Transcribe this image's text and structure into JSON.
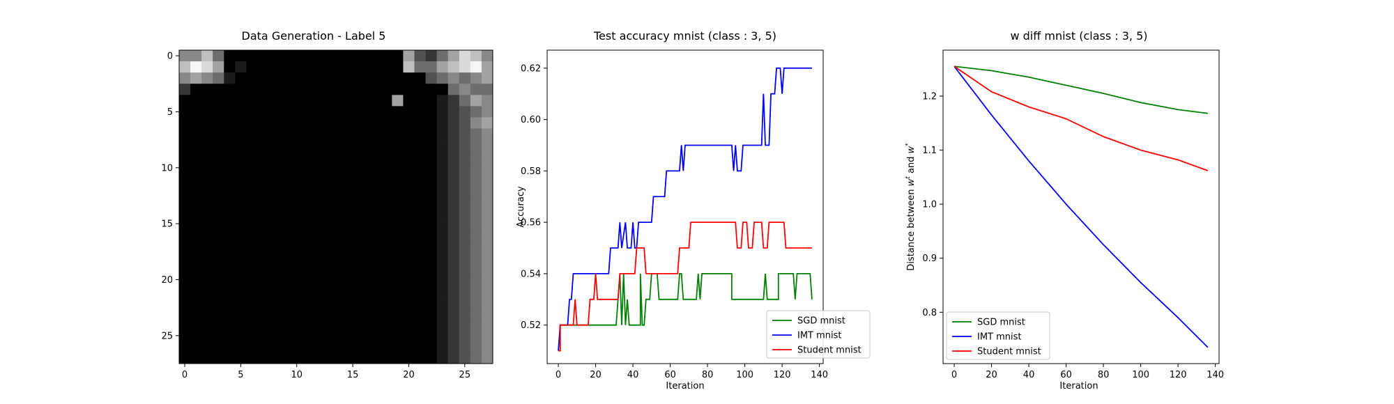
{
  "colors": {
    "sgd": "#008000",
    "imt": "#0000ff",
    "student": "#ff0000"
  },
  "chart_data": [
    {
      "type": "heatmap",
      "title": "Data Generation - Label 5",
      "xlabel": "",
      "ylabel": "",
      "colormap": "gray",
      "xlim": [
        -0.5,
        27.5
      ],
      "ylim": [
        27.5,
        -0.5
      ],
      "xticks": [
        0,
        5,
        10,
        15,
        20,
        25
      ],
      "yticks": [
        0,
        5,
        10,
        15,
        20,
        25
      ],
      "rows": [
        "5574000000000000000063246875",
        "7986010000000000000074467896",
        "5654100000000000000000345456",
        "2000000000000000000000004544",
        "0000000000000000000600012465",
        "0000000000000000000000012345",
        "0000000000000000000000012356",
        "0000000000000000000000012345",
        "0000000000000000000000012345",
        "0000000000000000000000012345",
        "0000000000000000000000012345",
        "0000000000000000000000012345",
        "0000000000000000000000012345",
        "0000000000000000000000012345",
        "0000000000000000000000012345",
        "0000000000000000000000012345",
        "0000000000000000000000012345",
        "0000000000000000000000012345",
        "0000000000000000000000012345",
        "0000000000000000000000012345",
        "0000000000000000000000012345",
        "0000000000000000000000012345",
        "0000000000000000000000012345",
        "0000000000000000000000012345",
        "0000000000000000000000012345",
        "0000000000000000000000012345",
        "0000000000000000000000012345",
        "0000000000000000000000012345"
      ]
    },
    {
      "type": "line",
      "title": "Test accuracy mnist (class : 3, 5)",
      "xlabel": "Iteration",
      "ylabel": "Accuracy",
      "xlim": [
        -6,
        142
      ],
      "ylim": [
        0.505,
        0.627
      ],
      "xticks": [
        0,
        20,
        40,
        60,
        80,
        100,
        120,
        140
      ],
      "yticks": [
        0.52,
        0.54,
        0.56,
        0.58,
        0.6,
        0.62
      ],
      "ytick_labels": [
        "0.52",
        "0.54",
        "0.56",
        "0.58",
        "0.60",
        "0.62"
      ],
      "legend_position": "lower-right",
      "series": [
        {
          "name": "SGD mnist",
          "color_key": "sgd",
          "points": [
            [
              0,
              0.51
            ],
            [
              1,
              0.51
            ],
            [
              1,
              0.52
            ],
            [
              2,
              0.52
            ],
            [
              30,
              0.52
            ],
            [
              31,
              0.52
            ],
            [
              32,
              0.53
            ],
            [
              33,
              0.54
            ],
            [
              34,
              0.52
            ],
            [
              35,
              0.54
            ],
            [
              36,
              0.52
            ],
            [
              37,
              0.53
            ],
            [
              38,
              0.52
            ],
            [
              44,
              0.52
            ],
            [
              44,
              0.54
            ],
            [
              45,
              0.52
            ],
            [
              46,
              0.52
            ],
            [
              47,
              0.53
            ],
            [
              49,
              0.53
            ],
            [
              50,
              0.54
            ],
            [
              53,
              0.54
            ],
            [
              54,
              0.53
            ],
            [
              64,
              0.53
            ],
            [
              65,
              0.54
            ],
            [
              66,
              0.54
            ],
            [
              67,
              0.53
            ],
            [
              74,
              0.53
            ],
            [
              75,
              0.54
            ],
            [
              76,
              0.53
            ],
            [
              77,
              0.54
            ],
            [
              93,
              0.54
            ],
            [
              93,
              0.53
            ],
            [
              110,
              0.53
            ],
            [
              111,
              0.54
            ],
            [
              112,
              0.53
            ],
            [
              118,
              0.53
            ],
            [
              118,
              0.54
            ],
            [
              126,
              0.54
            ],
            [
              127,
              0.53
            ],
            [
              128,
              0.54
            ],
            [
              135,
              0.54
            ],
            [
              136,
              0.53
            ]
          ]
        },
        {
          "name": "IMT mnist",
          "color_key": "imt",
          "points": [
            [
              0,
              0.51
            ],
            [
              1,
              0.52
            ],
            [
              5,
              0.52
            ],
            [
              6,
              0.53
            ],
            [
              7,
              0.53
            ],
            [
              8,
              0.54
            ],
            [
              27,
              0.54
            ],
            [
              28,
              0.55
            ],
            [
              32,
              0.55
            ],
            [
              33,
              0.56
            ],
            [
              34,
              0.55
            ],
            [
              36,
              0.56
            ],
            [
              37,
              0.55
            ],
            [
              39,
              0.55
            ],
            [
              40,
              0.56
            ],
            [
              41,
              0.55
            ],
            [
              42,
              0.55
            ],
            [
              43,
              0.56
            ],
            [
              50,
              0.56
            ],
            [
              51,
              0.57
            ],
            [
              57,
              0.57
            ],
            [
              58,
              0.58
            ],
            [
              65,
              0.58
            ],
            [
              66,
              0.59
            ],
            [
              67,
              0.58
            ],
            [
              68,
              0.59
            ],
            [
              93,
              0.59
            ],
            [
              94,
              0.58
            ],
            [
              95,
              0.59
            ],
            [
              96,
              0.58
            ],
            [
              98,
              0.58
            ],
            [
              99,
              0.59
            ],
            [
              109,
              0.59
            ],
            [
              110,
              0.61
            ],
            [
              111,
              0.59
            ],
            [
              113,
              0.59
            ],
            [
              114,
              0.61
            ],
            [
              116,
              0.61
            ],
            [
              117,
              0.62
            ],
            [
              119,
              0.62
            ],
            [
              120,
              0.61
            ],
            [
              121,
              0.62
            ],
            [
              136,
              0.62
            ]
          ]
        },
        {
          "name": "Student mnist",
          "color_key": "student",
          "points": [
            [
              0,
              0.51
            ],
            [
              1,
              0.51
            ],
            [
              1,
              0.52
            ],
            [
              8,
              0.52
            ],
            [
              9,
              0.53
            ],
            [
              10,
              0.52
            ],
            [
              16,
              0.52
            ],
            [
              17,
              0.53
            ],
            [
              19,
              0.53
            ],
            [
              20,
              0.54
            ],
            [
              21,
              0.53
            ],
            [
              32,
              0.53
            ],
            [
              33,
              0.54
            ],
            [
              41,
              0.54
            ],
            [
              42,
              0.55
            ],
            [
              46,
              0.55
            ],
            [
              47,
              0.54
            ],
            [
              64,
              0.54
            ],
            [
              65,
              0.55
            ],
            [
              70,
              0.55
            ],
            [
              71,
              0.56
            ],
            [
              95,
              0.56
            ],
            [
              96,
              0.55
            ],
            [
              98,
              0.55
            ],
            [
              99,
              0.56
            ],
            [
              101,
              0.56
            ],
            [
              102,
              0.55
            ],
            [
              104,
              0.55
            ],
            [
              105,
              0.56
            ],
            [
              109,
              0.56
            ],
            [
              110,
              0.55
            ],
            [
              112,
              0.55
            ],
            [
              113,
              0.56
            ],
            [
              121,
              0.56
            ],
            [
              122,
              0.55
            ],
            [
              136,
              0.55
            ]
          ]
        }
      ]
    },
    {
      "type": "line",
      "title": "w diff mnist (class : 3, 5)",
      "xlabel": "Iteration",
      "ylabel": "Distance between w^t and w^*",
      "xlim": [
        -6,
        142
      ],
      "ylim": [
        0.705,
        1.285
      ],
      "xticks": [
        0,
        20,
        40,
        60,
        80,
        100,
        120,
        140
      ],
      "yticks": [
        0.8,
        0.9,
        1.0,
        1.1,
        1.2
      ],
      "ytick_labels": [
        "0.8",
        "0.9",
        "1.0",
        "1.1",
        "1.2"
      ],
      "legend_position": "lower-left",
      "series": [
        {
          "name": "SGD mnist",
          "color_key": "sgd",
          "points": [
            [
              0,
              1.255
            ],
            [
              20,
              1.247
            ],
            [
              40,
              1.235
            ],
            [
              60,
              1.22
            ],
            [
              80,
              1.205
            ],
            [
              100,
              1.188
            ],
            [
              120,
              1.175
            ],
            [
              136,
              1.168
            ]
          ]
        },
        {
          "name": "IMT mnist",
          "color_key": "imt",
          "points": [
            [
              0,
              1.255
            ],
            [
              20,
              1.165
            ],
            [
              40,
              1.08
            ],
            [
              60,
              1.0
            ],
            [
              80,
              0.925
            ],
            [
              100,
              0.855
            ],
            [
              120,
              0.79
            ],
            [
              136,
              0.735
            ]
          ]
        },
        {
          "name": "Student mnist",
          "color_key": "student",
          "points": [
            [
              0,
              1.255
            ],
            [
              20,
              1.208
            ],
            [
              40,
              1.18
            ],
            [
              60,
              1.158
            ],
            [
              80,
              1.125
            ],
            [
              100,
              1.1
            ],
            [
              120,
              1.082
            ],
            [
              136,
              1.062
            ]
          ]
        }
      ]
    }
  ]
}
